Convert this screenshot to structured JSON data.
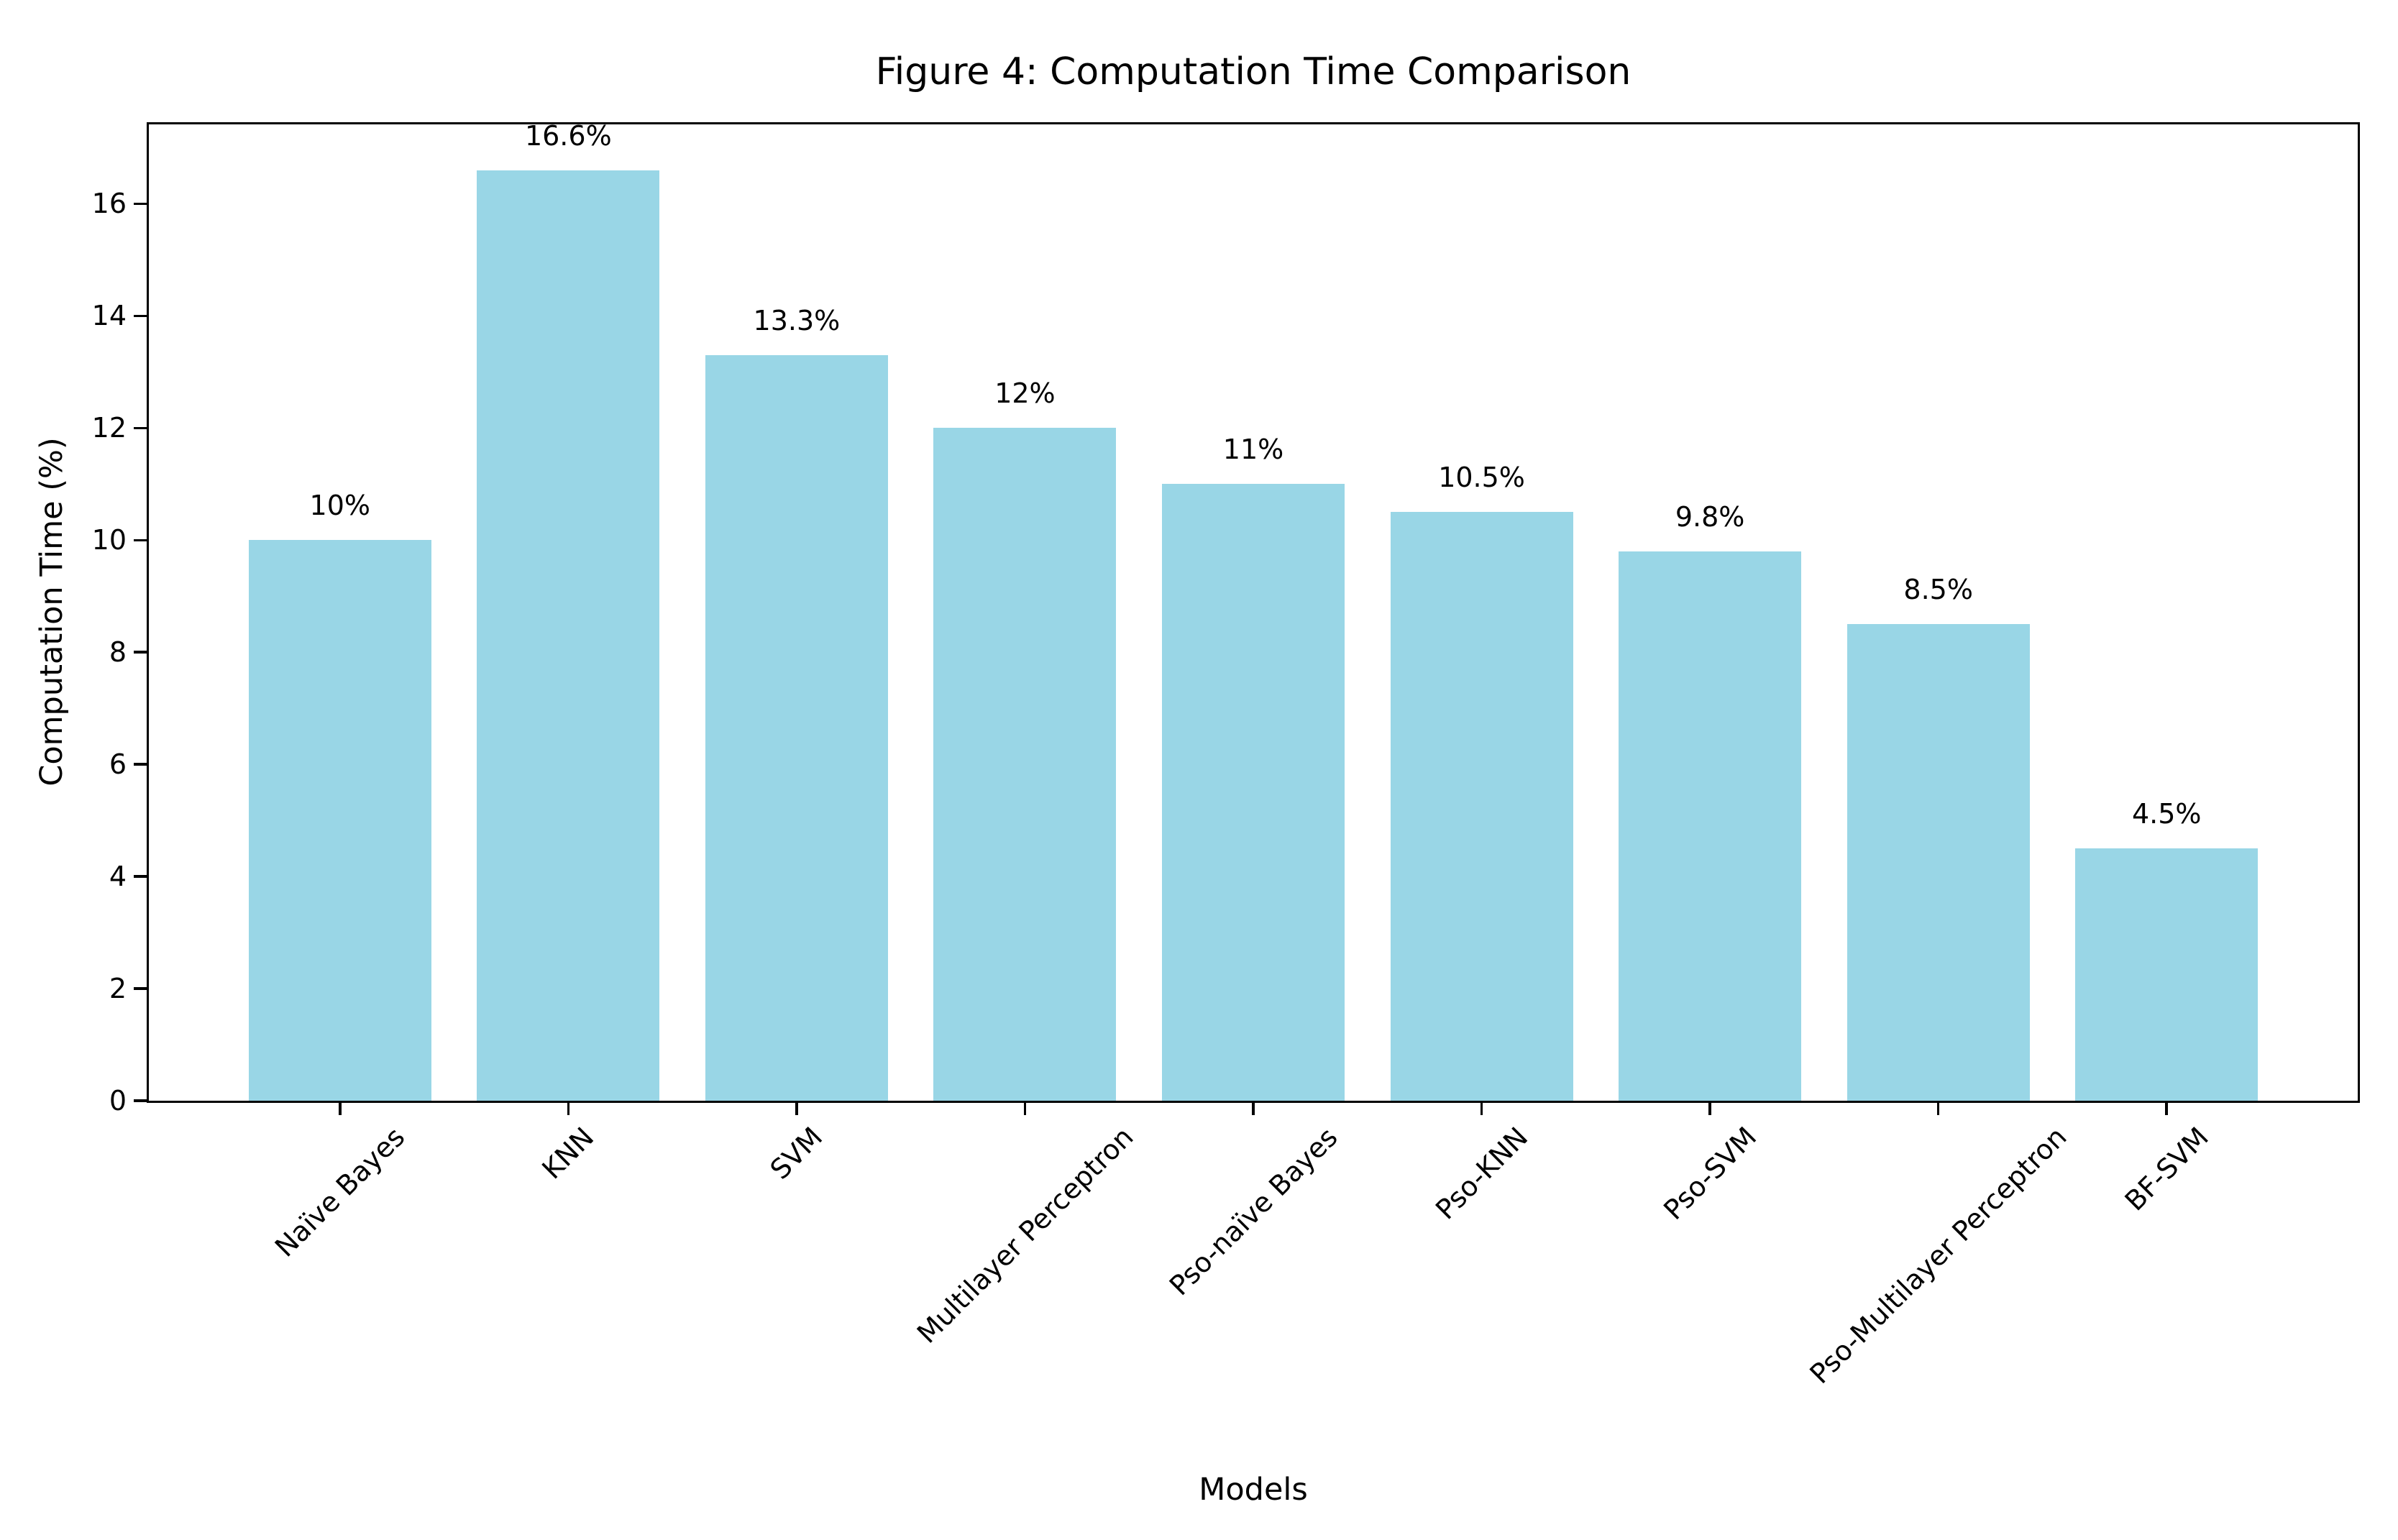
{
  "chart_data": {
    "type": "bar",
    "title": "Figure 4: Computation Time Comparison",
    "xlabel": "Models",
    "ylabel": "Computation Time (%)",
    "categories": [
      "Naïve Bayes",
      "KNN",
      "SVM",
      "Multilayer Perceptron",
      "Pso-naïve Bayes",
      "Pso-KNN",
      "Pso-SVM",
      "Pso-Multilayer Perceptron",
      "BF-SVM"
    ],
    "values": [
      10,
      16.6,
      13.3,
      12,
      11,
      10.5,
      9.8,
      8.5,
      4.5
    ],
    "bar_labels": [
      "10%",
      "16.6%",
      "13.3%",
      "12%",
      "11%",
      "10.5%",
      "9.8%",
      "8.5%",
      "4.5%"
    ],
    "ytick_labels": [
      "0",
      "2",
      "4",
      "6",
      "8",
      "10",
      "12",
      "14",
      "16"
    ],
    "ylim": [
      0,
      17.43
    ],
    "grid": false,
    "legend": "none",
    "xtick_rotation_deg": 45,
    "colors": {
      "bar": "#99D6E6",
      "axis": "#000000",
      "text": "#000000",
      "background": "#ffffff"
    }
  }
}
